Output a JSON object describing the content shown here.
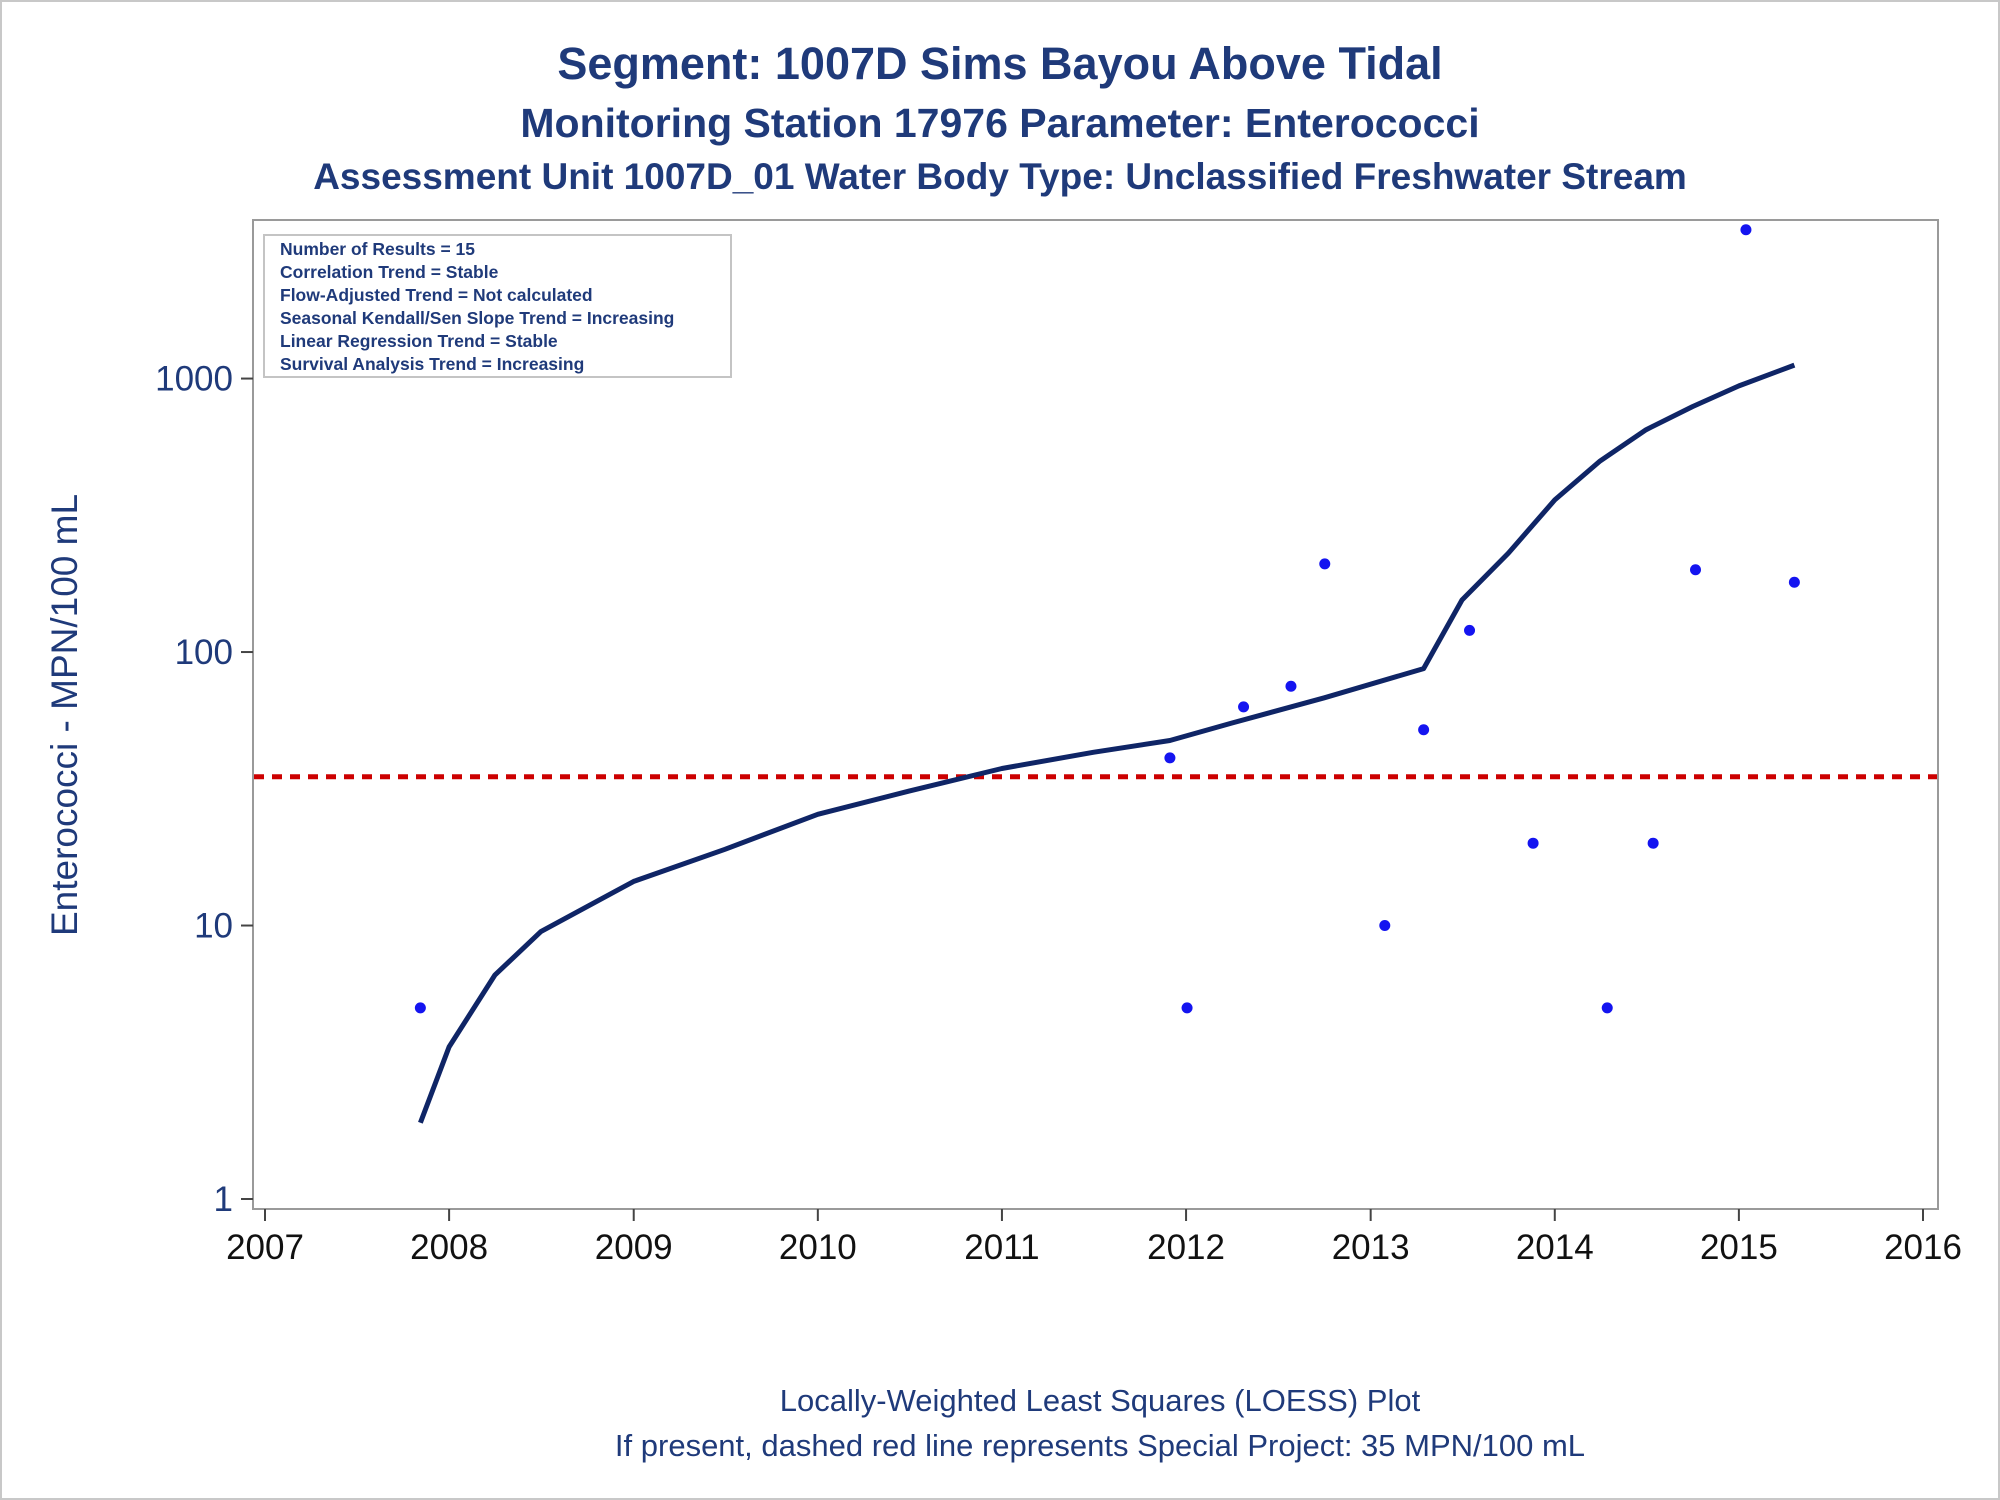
{
  "titles": {
    "line1": "Segment: 1007D  Sims Bayou Above Tidal",
    "line2": "Monitoring Station 17976 Parameter: Enterococci",
    "line3": "Assessment Unit 1007D_01   Water Body Type: Unclassified Freshwater Stream"
  },
  "footer": {
    "line1": "Locally-Weighted Least Squares (LOESS) Plot",
    "line2": "If present, dashed red line represents Special Project: 35 MPN/100 mL"
  },
  "colors": {
    "text": "#1f3a7a",
    "points": "#1414f0",
    "loess": "#0f2566",
    "reference": "#cc0000",
    "frame": "#9a9a9a"
  },
  "chart_data": {
    "type": "scatter",
    "ylabel": "Enterococci - MPN/100 mL",
    "xlabel": "",
    "x_scale": "time",
    "y_scale": "log",
    "xlim": [
      "2007-01-01",
      "2016-01-01"
    ],
    "ylim": [
      1,
      3800
    ],
    "x_ticks": [
      "2007",
      "2008",
      "2009",
      "2010",
      "2011",
      "2012",
      "2013",
      "2014",
      "2015",
      "2016"
    ],
    "y_ticks": [
      1,
      10,
      100,
      1000
    ],
    "y_tick_labels": [
      "1",
      "10",
      "100",
      "1000"
    ],
    "grid": false,
    "legend": "none",
    "stats_box": [
      "Number of Results = 15",
      "Correlation Trend = Stable",
      "Flow-Adjusted Trend = Not calculated",
      "Seasonal Kendall/Sen Slope Trend = Increasing",
      "Linear Regression Trend = Stable",
      "Survival Analysis Trend = Increasing"
    ],
    "series": [
      {
        "type": "scatter",
        "points": [
          {
            "x": "2007-11-05",
            "y": 5
          },
          {
            "x": "2011-11-30",
            "y": 41
          },
          {
            "x": "2012-01-03",
            "y": 5
          },
          {
            "x": "2012-04-24",
            "y": 63
          },
          {
            "x": "2012-07-27",
            "y": 75
          },
          {
            "x": "2012-10-02",
            "y": 210
          },
          {
            "x": "2013-01-29",
            "y": 10
          },
          {
            "x": "2013-04-16",
            "y": 52
          },
          {
            "x": "2013-07-16",
            "y": 120
          },
          {
            "x": "2013-11-19",
            "y": 20
          },
          {
            "x": "2014-04-15",
            "y": 5
          },
          {
            "x": "2014-07-15",
            "y": 20
          },
          {
            "x": "2014-10-07",
            "y": 200
          },
          {
            "x": "2015-01-15",
            "y": 3500
          },
          {
            "x": "2015-04-21",
            "y": 180
          }
        ]
      },
      {
        "type": "line",
        "points": [
          {
            "x": "2007-11-05",
            "y": 1.9
          },
          {
            "x": "2008-01-01",
            "y": 3.6
          },
          {
            "x": "2008-04-01",
            "y": 6.6
          },
          {
            "x": "2008-07-01",
            "y": 9.5
          },
          {
            "x": "2009-01-01",
            "y": 14.5
          },
          {
            "x": "2009-07-01",
            "y": 19
          },
          {
            "x": "2010-01-01",
            "y": 25.5
          },
          {
            "x": "2010-07-01",
            "y": 31
          },
          {
            "x": "2011-01-01",
            "y": 37.5
          },
          {
            "x": "2011-07-01",
            "y": 43
          },
          {
            "x": "2011-11-30",
            "y": 47.5
          },
          {
            "x": "2012-04-01",
            "y": 55
          },
          {
            "x": "2012-10-01",
            "y": 68
          },
          {
            "x": "2013-04-16",
            "y": 87
          },
          {
            "x": "2013-07-01",
            "y": 155
          },
          {
            "x": "2013-10-01",
            "y": 230
          },
          {
            "x": "2014-01-01",
            "y": 360
          },
          {
            "x": "2014-04-01",
            "y": 500
          },
          {
            "x": "2014-07-01",
            "y": 650
          },
          {
            "x": "2014-10-01",
            "y": 790
          },
          {
            "x": "2015-01-01",
            "y": 940
          },
          {
            "x": "2015-04-21",
            "y": 1120
          }
        ]
      },
      {
        "type": "reference",
        "y": 35
      }
    ]
  }
}
